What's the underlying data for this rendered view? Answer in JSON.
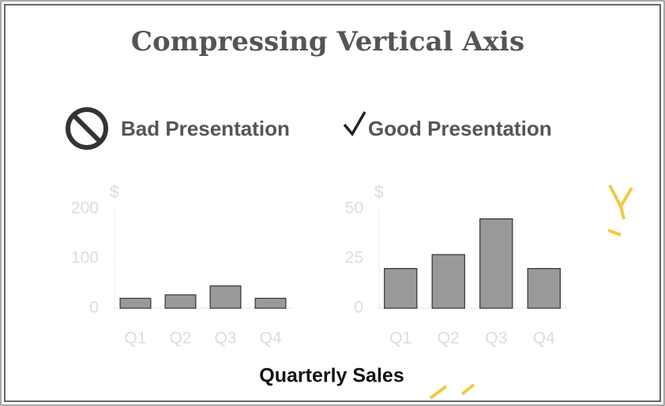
{
  "title": "Compressing Vertical Axis",
  "x_label": "Quarterly Sales",
  "chart_data": [
    {
      "type": "bar",
      "title": "Bad Presentation",
      "y_label": "$",
      "categories": [
        "Q1",
        "Q2",
        "Q3",
        "Q4"
      ],
      "values": [
        20,
        27,
        45,
        20
      ],
      "color": "#999999",
      "ylim": [
        0,
        200
      ],
      "yticks": [
        0,
        100,
        200
      ]
    },
    {
      "type": "bar",
      "title": "Good Presentation",
      "y_label": "$",
      "categories": [
        "Q1",
        "Q2",
        "Q3",
        "Q4"
      ],
      "values": [
        20,
        27,
        45,
        20
      ],
      "color": "#999999",
      "ylim": [
        0,
        50
      ],
      "yticks": [
        0,
        25,
        50
      ]
    }
  ]
}
